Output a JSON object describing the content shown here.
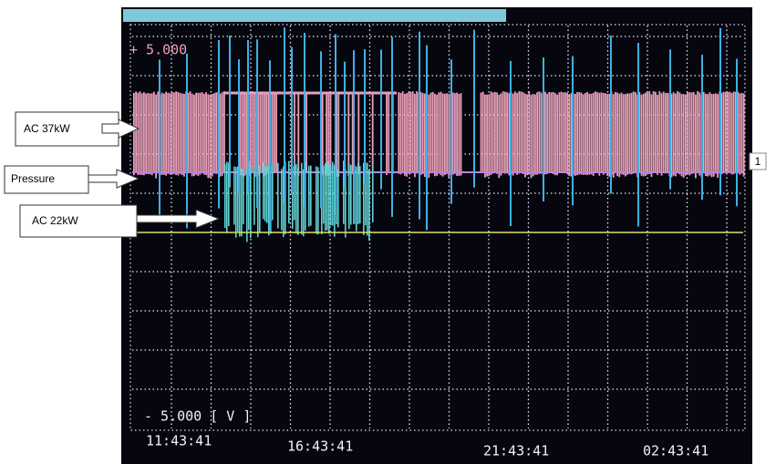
{
  "annotations": {
    "ac37": "AC 37kW",
    "pressure": "Pressure",
    "ac22": "AC 22kW"
  },
  "screen": {
    "upper_limit": "+ 5.000",
    "lower_limit": "- 5.000 [ V   ]",
    "channel_marker": "1",
    "time_labels": [
      "11:43:41",
      "16:43:41",
      "21:43:41",
      "02:43:41"
    ]
  }
}
